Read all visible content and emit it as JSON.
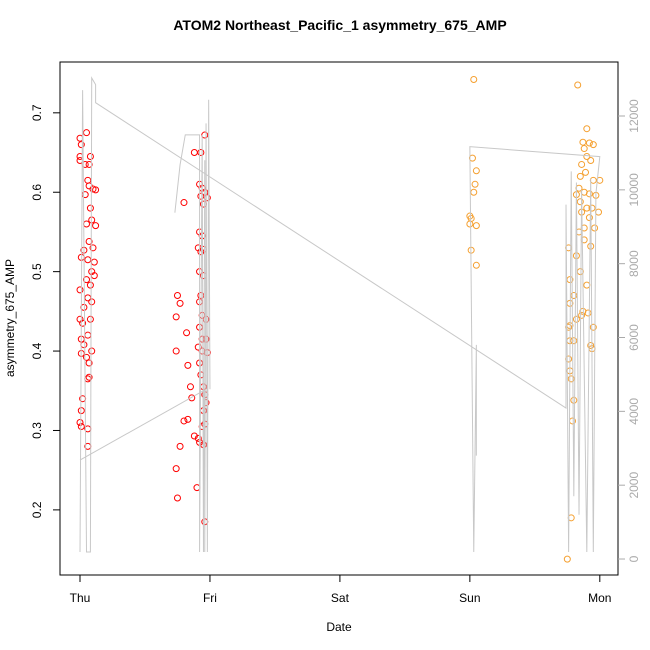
{
  "chart_data": {
    "type": "scatter",
    "title": "ATOM2 Northeast_Pacific_1 asymmetry_675_AMP",
    "x_label": "Date",
    "y_label": "asymmetry_675_AMP",
    "xlim": [
      -0.154,
      4.14
    ],
    "xticks": [
      {
        "value": 0,
        "label": "Thu"
      },
      {
        "value": 1,
        "label": "Fri"
      },
      {
        "value": 2,
        "label": "Sat"
      },
      {
        "value": 3,
        "label": "Sun"
      },
      {
        "value": 4,
        "label": "Mon"
      }
    ],
    "ylim": [
      0.118,
      0.764
    ],
    "yticks": [
      0.2,
      0.3,
      0.4,
      0.5,
      0.6,
      0.7
    ],
    "y2lim": [
      -433,
      13463
    ],
    "y2ticks": [
      0,
      2000,
      4000,
      6000,
      8000,
      10000,
      12000
    ],
    "series": [
      {
        "color": "#ff0000",
        "x": [
          0.0,
          0.01,
          0.0,
          0.0,
          0.05,
          0.04,
          0.07,
          0.08,
          0.06,
          0.07,
          0.1,
          0.12,
          0.04,
          0.08,
          0.12,
          0.09,
          0.05,
          0.07,
          0.1,
          0.03,
          0.01,
          0.06,
          0.11,
          0.09,
          0.11,
          0.05,
          0.08,
          0.0,
          0.06,
          0.09,
          0.03,
          0.08,
          0.0,
          0.02,
          0.06,
          0.01,
          0.03,
          0.09,
          0.01,
          0.05,
          0.07,
          0.06,
          0.07,
          0.02,
          0.01,
          0.0,
          0.01,
          0.06,
          0.06,
          0.75,
          0.74,
          0.74,
          0.77,
          0.74,
          0.75,
          0.8,
          0.82,
          0.83,
          0.8,
          0.83,
          0.77,
          0.86,
          0.85,
          0.88,
          0.9,
          0.88,
          0.93,
          0.92,
          0.94,
          0.96,
          0.93,
          0.95,
          0.98,
          0.96,
          0.92,
          0.94,
          0.91,
          0.95,
          0.93,
          0.92,
          0.95,
          0.93,
          0.92,
          0.94,
          0.97,
          0.92,
          0.94,
          0.97,
          0.91,
          0.94,
          0.98,
          0.92,
          0.93,
          0.95,
          0.96,
          0.97,
          0.95,
          0.96,
          0.94,
          0.91,
          0.92,
          0.95,
          0.96
        ],
        "values": [
          0.668,
          0.66,
          0.645,
          0.64,
          0.675,
          0.635,
          0.635,
          0.645,
          0.615,
          0.608,
          0.604,
          0.603,
          0.597,
          0.58,
          0.558,
          0.565,
          0.56,
          0.538,
          0.53,
          0.527,
          0.518,
          0.515,
          0.512,
          0.5,
          0.495,
          0.49,
          0.483,
          0.477,
          0.467,
          0.462,
          0.455,
          0.44,
          0.44,
          0.435,
          0.42,
          0.415,
          0.408,
          0.4,
          0.397,
          0.392,
          0.385,
          0.365,
          0.367,
          0.34,
          0.325,
          0.31,
          0.305,
          0.302,
          0.28,
          0.47,
          0.443,
          0.4,
          0.46,
          0.252,
          0.215,
          0.587,
          0.423,
          0.382,
          0.312,
          0.314,
          0.28,
          0.341,
          0.355,
          0.293,
          0.228,
          0.65,
          0.65,
          0.61,
          0.605,
          0.6,
          0.595,
          0.585,
          0.593,
          0.672,
          0.55,
          0.545,
          0.53,
          0.528,
          0.525,
          0.5,
          0.495,
          0.47,
          0.462,
          0.445,
          0.44,
          0.43,
          0.415,
          0.415,
          0.405,
          0.4,
          0.398,
          0.385,
          0.37,
          0.355,
          0.345,
          0.335,
          0.325,
          0.308,
          0.305,
          0.29,
          0.285,
          0.282,
          0.185
        ]
      },
      {
        "color": "#f5a030",
        "x": [
          3.03,
          3.02,
          3.05,
          3.04,
          3.03,
          3.0,
          3.01,
          3.0,
          3.05,
          3.01,
          3.05,
          3.83,
          3.9,
          3.87,
          3.92,
          3.88,
          3.95,
          3.9,
          3.93,
          3.86,
          3.89,
          3.85,
          3.95,
          4.0,
          3.84,
          3.88,
          3.82,
          3.92,
          3.97,
          3.85,
          3.9,
          3.94,
          3.99,
          3.86,
          3.92,
          3.88,
          3.84,
          3.96,
          3.93,
          3.88,
          3.76,
          3.82,
          3.77,
          3.85,
          3.9,
          3.8,
          3.77,
          3.87,
          3.91,
          3.82,
          3.86,
          3.77,
          3.76,
          3.95,
          3.77,
          3.8,
          3.93,
          3.94,
          3.76,
          3.77,
          3.78,
          3.8,
          3.79,
          3.78,
          3.75
        ],
        "values": [
          0.742,
          0.643,
          0.627,
          0.61,
          0.6,
          0.57,
          0.567,
          0.56,
          0.558,
          0.527,
          0.508,
          0.735,
          0.68,
          0.663,
          0.662,
          0.655,
          0.66,
          0.645,
          0.64,
          0.635,
          0.625,
          0.62,
          0.615,
          0.615,
          0.605,
          0.6,
          0.597,
          0.598,
          0.596,
          0.588,
          0.58,
          0.58,
          0.575,
          0.575,
          0.568,
          0.555,
          0.55,
          0.555,
          0.532,
          0.54,
          0.53,
          0.52,
          0.49,
          0.5,
          0.483,
          0.47,
          0.46,
          0.45,
          0.448,
          0.44,
          0.445,
          0.432,
          0.43,
          0.43,
          0.413,
          0.413,
          0.407,
          0.403,
          0.39,
          0.375,
          0.365,
          0.338,
          0.312,
          0.19,
          0.138
        ]
      },
      {
        "type": "line",
        "axis": "y2",
        "color": "#c8c8c8",
        "x": [
          0.0,
          0.96,
          0.96,
          0.97,
          0.98,
          0.99,
          1.0,
          null,
          0.73,
          0.77,
          0.81,
          0.92,
          0.92,
          0.94,
          0.95,
          0.96,
          null,
          0.0,
          0.02,
          0.05,
          0.08,
          0.09,
          0.12,
          0.12,
          3.74,
          3.74,
          3.76,
          3.78,
          3.8,
          3.82,
          3.84,
          3.86,
          3.9,
          3.93,
          3.95,
          3.97,
          4.0,
          3.0,
          3.03,
          3.05,
          3.05
        ],
        "values": [
          2680,
          4580,
          190,
          11800,
          190,
          12440,
          4600,
          null,
          9380,
          10680,
          11490,
          11490,
          190,
          11490,
          190,
          10800,
          null,
          190,
          12700,
          190,
          190,
          13030,
          12850,
          12360,
          4090,
          9600,
          190,
          10500,
          1700,
          10200,
          1200,
          10000,
          190,
          10300,
          190,
          9900,
          10900,
          11170,
          190,
          5800,
          2800
        ]
      }
    ]
  }
}
